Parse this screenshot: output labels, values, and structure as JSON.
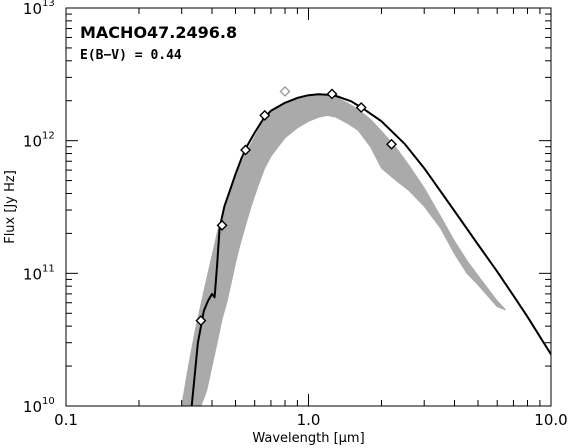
{
  "chart_data": {
    "type": "line",
    "title": "",
    "xlabel": "Wavelength [μm]",
    "ylabel": "Flux [Jy Hz]",
    "xscale": "log",
    "yscale": "log",
    "xlim": [
      0.1,
      10.0
    ],
    "ylim": [
      10000000000.0,
      10000000000000.0
    ],
    "x_ticks": [
      {
        "value": 0.1,
        "label": "0.1"
      },
      {
        "value": 1.0,
        "label": "1.0"
      },
      {
        "value": 10.0,
        "label": "10.0"
      }
    ],
    "y_ticks": [
      {
        "value": 10000000000.0,
        "base": "10",
        "exp": "10"
      },
      {
        "value": 100000000000.0,
        "base": "10",
        "exp": "11"
      },
      {
        "value": 1000000000000.0,
        "base": "10",
        "exp": "12"
      },
      {
        "value": 10000000000000.0,
        "base": "10",
        "exp": "13"
      }
    ],
    "annotations": {
      "object_name": "MACHO47.2496.8",
      "reddening": "E(B−V) = 0.44"
    },
    "series": [
      {
        "kind": "model_spectrum",
        "color": "#aaaaaa",
        "x": [
          0.3,
          0.32,
          0.34,
          0.36,
          0.38,
          0.4,
          0.42,
          0.44,
          0.46,
          0.48,
          0.5,
          0.52,
          0.55,
          0.58,
          0.62,
          0.66,
          0.7,
          0.75,
          0.8,
          0.9,
          1.0,
          1.1,
          1.2,
          1.3,
          1.45,
          1.6,
          1.8,
          2.0,
          2.3,
          2.6,
          3.0,
          3.5,
          4.0,
          4.5,
          5.0,
          6.0,
          6.5
        ],
        "y_upper": [
          10000000000.0,
          20000000000.0,
          36000000000.0,
          58000000000.0,
          90000000000.0,
          135000000000.0,
          200000000000.0,
          270000000000.0,
          340000000000.0,
          440000000000.0,
          540000000000.0,
          640000000000.0,
          800000000000.0,
          950000000000.0,
          1200000000000.0,
          1450000000000.0,
          1620000000000.0,
          1800000000000.0,
          1950000000000.0,
          2080000000000.0,
          2180000000000.0,
          2200000000000.0,
          2190000000000.0,
          2120000000000.0,
          1920000000000.0,
          1720000000000.0,
          1450000000000.0,
          1180000000000.0,
          880000000000.0,
          650000000000.0,
          440000000000.0,
          270000000000.0,
          175000000000.0,
          125000000000.0,
          96000000000.0,
          62000000000.0,
          53000000000.0
        ],
        "y_lower": [
          10000000000.0,
          10000000000.0,
          10000000000.0,
          10000000000.0,
          13000000000.0,
          20000000000.0,
          30000000000.0,
          45000000000.0,
          60000000000.0,
          85000000000.0,
          120000000000.0,
          160000000000.0,
          230000000000.0,
          320000000000.0,
          460000000000.0,
          620000000000.0,
          760000000000.0,
          900000000000.0,
          1050000000000.0,
          1250000000000.0,
          1400000000000.0,
          1500000000000.0,
          1550000000000.0,
          1500000000000.0,
          1350000000000.0,
          1200000000000.0,
          900000000000.0,
          620000000000.0,
          500000000000.0,
          420000000000.0,
          320000000000.0,
          220000000000.0,
          140000000000.0,
          100000000000.0,
          82000000000.0,
          56000000000.0,
          53000000000.0
        ]
      },
      {
        "kind": "best_fit_sed",
        "color": "#000000",
        "x": [
          0.33,
          0.35,
          0.37,
          0.385,
          0.4,
          0.41,
          0.42,
          0.43,
          0.45,
          0.48,
          0.5,
          0.53,
          0.56,
          0.6,
          0.65,
          0.7,
          0.8,
          0.9,
          1.0,
          1.1,
          1.2,
          1.3,
          1.5,
          1.7,
          2.0,
          2.5,
          3.0,
          4.0,
          5.0,
          6.0,
          7.0,
          8.0,
          10.0
        ],
        "y": [
          10000000000.0,
          30000000000.0,
          52000000000.0,
          62000000000.0,
          70000000000.0,
          66000000000.0,
          115000000000.0,
          220000000000.0,
          320000000000.0,
          450000000000.0,
          560000000000.0,
          740000000000.0,
          920000000000.0,
          1150000000000.0,
          1450000000000.0,
          1680000000000.0,
          1930000000000.0,
          2100000000000.0,
          2200000000000.0,
          2240000000000.0,
          2220000000000.0,
          2170000000000.0,
          1980000000000.0,
          1720000000000.0,
          1400000000000.0,
          940000000000.0,
          620000000000.0,
          295000000000.0,
          165000000000.0,
          103000000000.0,
          68000000000.0,
          47000000000.0,
          24500000000.0
        ]
      },
      {
        "kind": "photometry_points",
        "marker": "diamond",
        "color": "#000000",
        "points": [
          {
            "x": 0.36,
            "y": 44000000000.0
          },
          {
            "x": 0.44,
            "y": 230000000000.0
          },
          {
            "x": 0.55,
            "y": 850000000000.0
          },
          {
            "x": 0.66,
            "y": 1550000000000.0
          },
          {
            "x": 1.25,
            "y": 2250000000000.0
          },
          {
            "x": 1.65,
            "y": 1780000000000.0
          },
          {
            "x": 2.2,
            "y": 940000000000.0
          }
        ]
      },
      {
        "kind": "excluded_point",
        "marker": "diamond",
        "color": "#999999",
        "points": [
          {
            "x": 0.8,
            "y": 2350000000000.0
          }
        ]
      }
    ],
    "grid": false,
    "legend": "none"
  }
}
